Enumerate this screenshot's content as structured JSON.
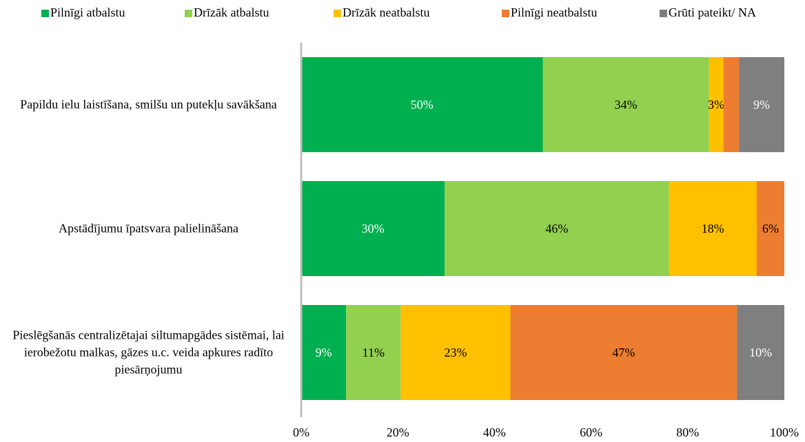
{
  "chart_data": {
    "type": "stacked_barh",
    "categories": [
      "Papildu ielu laistīšana, smilšu un putekļu savākšana",
      "Apstādījumu īpatsvara palielināšana",
      "Pieslēgšanās centralizētajai siltumapgādes sistēmai, lai ierobežotu malkas, gāzes u.c. veida apkures radīto piesārņojumu"
    ],
    "series": [
      {
        "name": "Pilnīgi atbalstu",
        "color": "#00b050",
        "label_color": "#ffffff",
        "values": [
          50,
          29.7,
          9.3
        ],
        "value_labels": [
          "50%",
          "30%",
          "9%"
        ]
      },
      {
        "name": "Drīzāk atbalstu",
        "color": "#92d050",
        "label_color": "#000000",
        "values": [
          34.4,
          46.4,
          11.3
        ],
        "value_labels": [
          "34%",
          "46%",
          "11%"
        ]
      },
      {
        "name": "Drīzāk neatbalstu",
        "color": "#ffc000",
        "label_color": "#000000",
        "values": [
          3,
          18.2,
          22.7
        ],
        "value_labels": [
          "3%",
          "18%",
          "23%"
        ]
      },
      {
        "name": "Pilnīgi neatbalstu",
        "color": "#ed7d31",
        "label_color": "#000000",
        "values": [
          3.2,
          5.7,
          46.9
        ],
        "value_labels": [
          null,
          "6%",
          "47%"
        ]
      },
      {
        "name": "Grūti pateikt/ NA",
        "color": "#7f7f7f",
        "label_color": "#ffffff",
        "values": [
          9.4,
          0,
          9.8
        ],
        "value_labels": [
          "9%",
          null,
          "10%"
        ]
      }
    ],
    "xlim": [
      0,
      100
    ],
    "xticks": [
      {
        "value": 0,
        "label": "0%"
      },
      {
        "value": 20,
        "label": "20%"
      },
      {
        "value": 40,
        "label": "40%"
      },
      {
        "value": 60,
        "label": "60%"
      },
      {
        "value": 80,
        "label": "80%"
      },
      {
        "value": 100,
        "label": "100%"
      }
    ],
    "legend": "top"
  }
}
